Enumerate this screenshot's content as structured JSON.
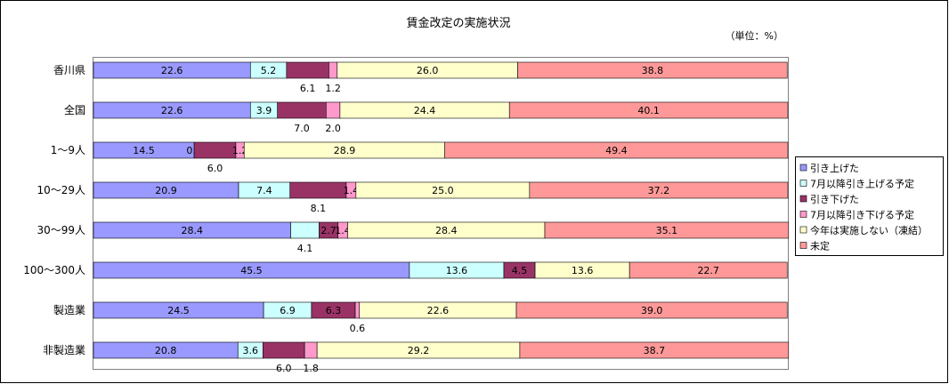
{
  "chart_data": {
    "type": "bar",
    "orientation": "horizontal",
    "stacked": true,
    "percent_stacked": true,
    "title": "賃金改定の実施状況",
    "unit_label": "（単位：%）",
    "categories": [
      "香川県",
      "全国",
      "1～9人",
      "10～29人",
      "30～99人",
      "100～300人",
      "製造業",
      "非製造業"
    ],
    "series": [
      {
        "name": "引き上げた",
        "color": "#9999ff",
        "values": [
          22.6,
          22.6,
          14.5,
          20.9,
          28.4,
          45.5,
          24.5,
          20.8
        ]
      },
      {
        "name": "7月以降引き上げる予定",
        "color": "#ccffff",
        "values": [
          5.2,
          3.9,
          0.0,
          7.4,
          4.1,
          13.6,
          6.9,
          3.6
        ]
      },
      {
        "name": "引き下げた",
        "color": "#993366",
        "values": [
          6.1,
          7.0,
          6.0,
          8.1,
          2.7,
          4.5,
          6.3,
          6.0
        ]
      },
      {
        "name": "7月以降引き下げる予定",
        "color": "#ff99cc",
        "values": [
          1.2,
          2.0,
          1.2,
          1.4,
          1.4,
          0.0,
          0.6,
          1.8
        ]
      },
      {
        "name": "今年は実施しない（凍結）",
        "color": "#ffffcc",
        "values": [
          26.0,
          24.4,
          28.9,
          25.0,
          28.4,
          13.6,
          22.6,
          29.2
        ]
      },
      {
        "name": "未定",
        "color": "#ff9999",
        "values": [
          38.8,
          40.1,
          49.4,
          37.2,
          35.1,
          22.7,
          39.0,
          38.7
        ]
      }
    ],
    "xlim": [
      0,
      100
    ],
    "grid": false,
    "legend_position": "right"
  }
}
